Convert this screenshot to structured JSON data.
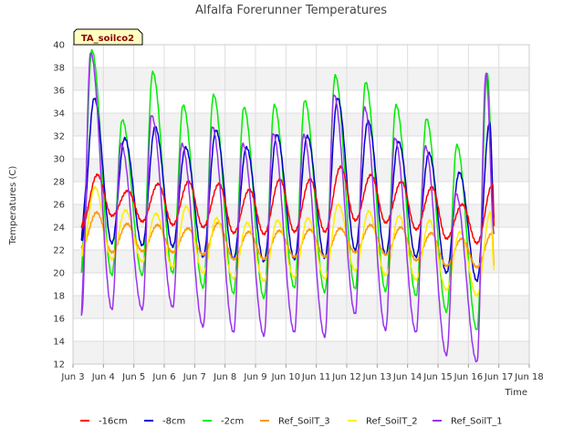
{
  "chart_data": {
    "type": "line",
    "title": "Alfalfa Forerunner Temperatures",
    "xlabel": "Time",
    "ylabel": "Temperatures (C)",
    "badge": "TA_soilco2",
    "xlim": [
      3,
      18
    ],
    "ylim": [
      12,
      40
    ],
    "grid": true,
    "legend_position": "bottom",
    "x_ticks": [
      3,
      4,
      5,
      6,
      7,
      8,
      9,
      10,
      11,
      12,
      13,
      14,
      15,
      16,
      17,
      18
    ],
    "x_tick_labels": [
      "Jun 3",
      "Jun 4",
      "Jun 5",
      "Jun 6",
      "Jun 7",
      "Jun 8",
      "Jun 9",
      "Jun 10",
      "Jun 11",
      "Jun 12",
      "Jun 13",
      "Jun 14",
      "Jun 15",
      "Jun 16",
      "Jun 17",
      "Jun 18"
    ],
    "y_ticks": [
      12,
      14,
      16,
      18,
      20,
      22,
      24,
      26,
      28,
      30,
      32,
      34,
      36,
      38,
      40
    ],
    "days": [
      3.5,
      4.5,
      5.5,
      6.5,
      7.5,
      8.5,
      9.5,
      10.5,
      11.5,
      12.5,
      13.5,
      14.5,
      15.5,
      16.5
    ],
    "series": [
      {
        "name": "-16cm",
        "color": "#ff0000",
        "peak_phase": 0.8,
        "minima": [
          24.0,
          25.0,
          24.5,
          24.2,
          24.0,
          23.5,
          23.4,
          23.6,
          23.6,
          24.6,
          24.4,
          23.8,
          23.0,
          22.6
        ],
        "maxima": [
          28.6,
          27.2,
          27.8,
          28.0,
          27.8,
          27.3,
          28.2,
          28.2,
          29.3,
          28.6,
          28.0,
          27.5,
          26.0,
          27.8
        ]
      },
      {
        "name": "-8cm",
        "color": "#0000cc",
        "peak_phase": 0.7,
        "minima": [
          22.8,
          22.6,
          22.4,
          22.3,
          21.4,
          21.2,
          21.0,
          21.2,
          21.3,
          22.0,
          21.6,
          21.4,
          20.0,
          19.3
        ],
        "maxima": [
          35.3,
          31.8,
          32.8,
          31.0,
          32.5,
          31.0,
          32.1,
          32.0,
          35.3,
          33.3,
          31.5,
          30.5,
          28.8,
          33.2
        ]
      },
      {
        "name": "-2cm",
        "color": "#00ee00",
        "peak_phase": 0.62,
        "minima": [
          20.0,
          19.8,
          19.8,
          20.0,
          18.7,
          18.2,
          17.8,
          18.7,
          18.3,
          18.6,
          18.4,
          18.0,
          16.6,
          15.0
        ],
        "maxima": [
          39.5,
          33.4,
          37.6,
          34.7,
          35.6,
          34.5,
          34.7,
          35.1,
          37.3,
          36.7,
          34.7,
          33.5,
          31.2,
          37.5
        ]
      },
      {
        "name": "Ref_SoilT_3",
        "color": "#ff9900",
        "peak_phase": 0.78,
        "minima": [
          22.2,
          21.8,
          21.9,
          21.8,
          21.6,
          21.2,
          21.2,
          21.4,
          21.4,
          21.8,
          21.6,
          21.1,
          20.6,
          20.5
        ],
        "maxima": [
          25.3,
          24.3,
          24.2,
          23.9,
          24.4,
          23.6,
          23.7,
          23.8,
          23.9,
          24.2,
          24.0,
          23.5,
          23.0,
          23.5
        ]
      },
      {
        "name": "Ref_SoilT_2",
        "color": "#ffee00",
        "peak_phase": 0.72,
        "minima": [
          21.5,
          21.2,
          21.0,
          20.5,
          20.0,
          19.5,
          19.3,
          19.6,
          19.5,
          20.2,
          19.8,
          19.4,
          18.5,
          18.0
        ],
        "maxima": [
          27.5,
          25.5,
          25.2,
          25.8,
          24.8,
          24.4,
          24.6,
          24.8,
          26.0,
          25.4,
          25.0,
          24.6,
          23.6,
          25.3
        ]
      },
      {
        "name": "Ref_SoilT_1",
        "color": "#9933ee",
        "peak_phase": 0.58,
        "minima": [
          16.3,
          16.8,
          16.8,
          17.0,
          15.3,
          14.8,
          14.5,
          14.8,
          14.4,
          16.4,
          15.0,
          14.8,
          12.8,
          12.2
        ],
        "maxima": [
          39.3,
          31.3,
          33.8,
          31.3,
          32.8,
          31.3,
          32.2,
          32.1,
          35.6,
          34.5,
          31.8,
          31.1,
          27.0,
          37.5
        ]
      }
    ]
  }
}
